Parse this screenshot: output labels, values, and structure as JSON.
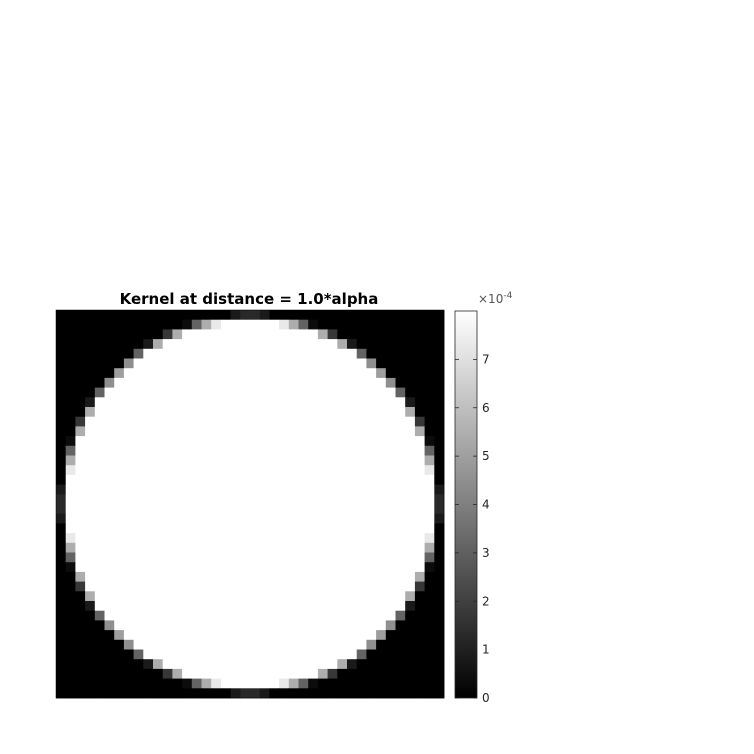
{
  "chart_data": {
    "type": "heatmap",
    "title": "Kernel at distance = 1.0*alpha",
    "colormap": "gray",
    "grid": false,
    "image": {
      "size": 40,
      "shape": "disk",
      "radius_cells": 19.2,
      "edge_softness_cells": 0.9,
      "inside_value": 0.0008,
      "outside_value": 0
    },
    "colorbar": {
      "location": "right",
      "limits": [
        0,
        0.0008
      ],
      "ticks": [
        0,
        1,
        2,
        3,
        4,
        5,
        6,
        7
      ],
      "tick_labels": [
        "0",
        "1",
        "2",
        "3",
        "4",
        "5",
        "6",
        "7"
      ],
      "exponent_base": "×10",
      "exponent_power": "-4"
    }
  }
}
